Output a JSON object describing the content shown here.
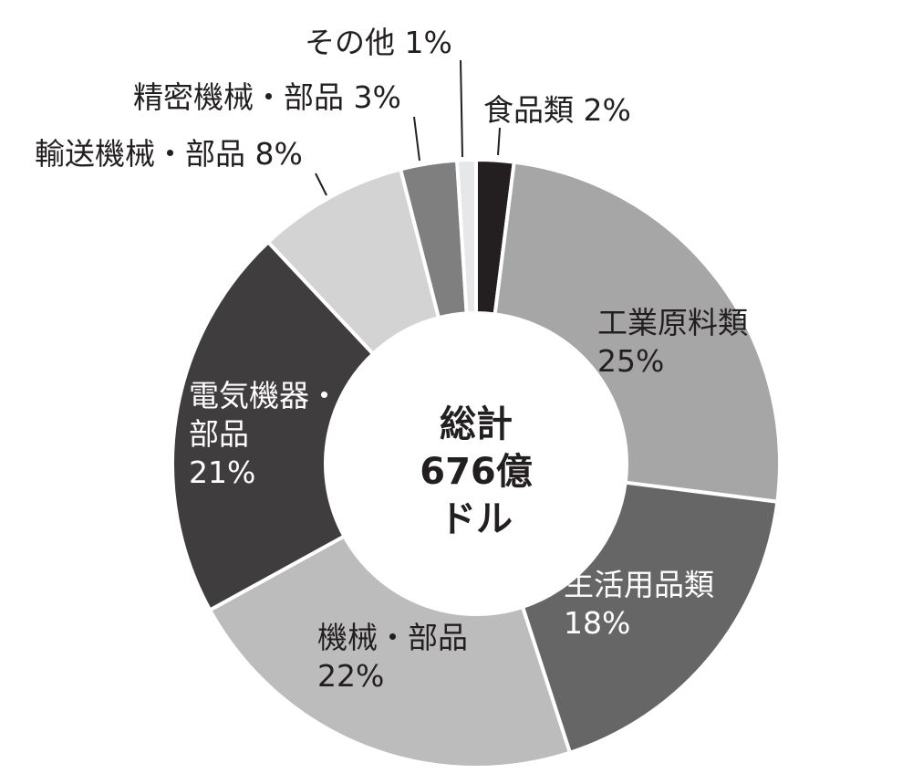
{
  "chart_data": {
    "type": "pie",
    "variant": "donut",
    "center_text": [
      "総計",
      "676億",
      "ドル"
    ],
    "slices": [
      {
        "label": "食品類",
        "value": 2,
        "color": "#231f20",
        "label_lines": [
          "食品類 2%"
        ]
      },
      {
        "label": "工業原料類",
        "value": 25,
        "color": "#a6a6a6",
        "label_lines": [
          "工業原料類",
          "25%"
        ]
      },
      {
        "label": "生活用品類",
        "value": 18,
        "color": "#666666",
        "label_lines": [
          "生活用品類",
          "18%"
        ]
      },
      {
        "label": "機械・部品",
        "value": 22,
        "color": "#bcbcbc",
        "label_lines": [
          "機械・部品",
          "22%"
        ]
      },
      {
        "label": "電気機器・部品",
        "value": 21,
        "color": "#403d3e",
        "label_lines": [
          "電気機器・",
          "部品",
          "21%"
        ]
      },
      {
        "label": "輸送機械・部品",
        "value": 8,
        "color": "#d3d3d3",
        "label_lines": [
          "輸送機械・部品 8%"
        ]
      },
      {
        "label": "精密機械・部品",
        "value": 3,
        "color": "#7f7f7f",
        "label_lines": [
          "精密機械・部品 3%"
        ]
      },
      {
        "label": "その他",
        "value": 1,
        "color": "#e6e7e8",
        "label_lines": [
          "その他 1%"
        ]
      }
    ],
    "legend": "none"
  }
}
